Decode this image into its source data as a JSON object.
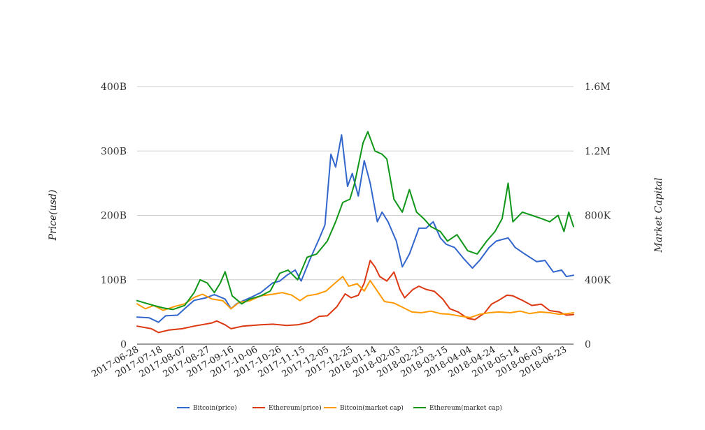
{
  "chart_data": {
    "type": "line",
    "x_start": "2017-06-28",
    "x_end": "2018-06-30",
    "x_tick_labels": [
      "2017-06-28",
      "2017-07-18",
      "2017-08-07",
      "2017-08-27",
      "2017-09-16",
      "2017-10-06",
      "2017-10-26",
      "2017-11-15",
      "2017-12-05",
      "2017-12-25",
      "2018-01-14",
      "2018-02-03",
      "2018-02-23",
      "2018-03-15",
      "2018-04-04",
      "2018-04-24",
      "2018-05-14",
      "2018-06-03",
      "2018-06-23"
    ],
    "ylabel": "Price(usd)",
    "y2label": "Market Capital",
    "ylim": [
      0,
      400
    ],
    "y2lim": [
      0,
      1600
    ],
    "y_tick_labels": [
      "0",
      "100B",
      "200B",
      "300B",
      "400B"
    ],
    "y2_tick_labels": [
      "0",
      "400K",
      "800K",
      "1.2M",
      "1.6M"
    ],
    "grid": true,
    "legend_position": "bottom",
    "series": [
      {
        "name": "Bitcoin(price)",
        "axis": "left",
        "color": "#3366cc",
        "points": [
          [
            "2017-06-28",
            42
          ],
          [
            "2017-07-08",
            41
          ],
          [
            "2017-07-16",
            34
          ],
          [
            "2017-07-22",
            44
          ],
          [
            "2017-08-01",
            45
          ],
          [
            "2017-08-07",
            55
          ],
          [
            "2017-08-15",
            68
          ],
          [
            "2017-08-25",
            72
          ],
          [
            "2017-09-01",
            77
          ],
          [
            "2017-09-10",
            70
          ],
          [
            "2017-09-15",
            55
          ],
          [
            "2017-09-20",
            63
          ],
          [
            "2017-10-01",
            72
          ],
          [
            "2017-10-10",
            80
          ],
          [
            "2017-10-20",
            95
          ],
          [
            "2017-10-26",
            98
          ],
          [
            "2017-11-01",
            107
          ],
          [
            "2017-11-08",
            115
          ],
          [
            "2017-11-13",
            98
          ],
          [
            "2017-11-20",
            130
          ],
          [
            "2017-11-28",
            163
          ],
          [
            "2017-12-03",
            185
          ],
          [
            "2017-12-08",
            295
          ],
          [
            "2017-12-12",
            275
          ],
          [
            "2017-12-17",
            325
          ],
          [
            "2017-12-22",
            245
          ],
          [
            "2017-12-26",
            265
          ],
          [
            "2017-12-31",
            230
          ],
          [
            "2018-01-05",
            285
          ],
          [
            "2018-01-10",
            250
          ],
          [
            "2018-01-16",
            190
          ],
          [
            "2018-01-20",
            205
          ],
          [
            "2018-01-25",
            190
          ],
          [
            "2018-02-01",
            160
          ],
          [
            "2018-02-06",
            120
          ],
          [
            "2018-02-12",
            140
          ],
          [
            "2018-02-20",
            180
          ],
          [
            "2018-02-26",
            180
          ],
          [
            "2018-03-04",
            190
          ],
          [
            "2018-03-10",
            165
          ],
          [
            "2018-03-15",
            155
          ],
          [
            "2018-03-22",
            150
          ],
          [
            "2018-03-30",
            132
          ],
          [
            "2018-04-06",
            118
          ],
          [
            "2018-04-12",
            130
          ],
          [
            "2018-04-20",
            150
          ],
          [
            "2018-04-26",
            160
          ],
          [
            "2018-05-06",
            165
          ],
          [
            "2018-05-12",
            150
          ],
          [
            "2018-05-20",
            140
          ],
          [
            "2018-05-30",
            128
          ],
          [
            "2018-06-06",
            130
          ],
          [
            "2018-06-13",
            112
          ],
          [
            "2018-06-20",
            115
          ],
          [
            "2018-06-24",
            105
          ],
          [
            "2018-06-30",
            107
          ]
        ]
      },
      {
        "name": "Ethereum(price)",
        "axis": "left",
        "color": "#dc3912",
        "points": [
          [
            "2017-06-28",
            28
          ],
          [
            "2017-07-10",
            24
          ],
          [
            "2017-07-16",
            18
          ],
          [
            "2017-07-25",
            22
          ],
          [
            "2017-08-05",
            24
          ],
          [
            "2017-08-15",
            28
          ],
          [
            "2017-08-30",
            33
          ],
          [
            "2017-09-03",
            36
          ],
          [
            "2017-09-10",
            30
          ],
          [
            "2017-09-15",
            24
          ],
          [
            "2017-09-25",
            28
          ],
          [
            "2017-10-10",
            30
          ],
          [
            "2017-10-20",
            31
          ],
          [
            "2017-11-01",
            29
          ],
          [
            "2017-11-10",
            30
          ],
          [
            "2017-11-20",
            34
          ],
          [
            "2017-11-28",
            43
          ],
          [
            "2017-12-05",
            44
          ],
          [
            "2017-12-13",
            58
          ],
          [
            "2017-12-20",
            78
          ],
          [
            "2017-12-25",
            72
          ],
          [
            "2017-12-31",
            76
          ],
          [
            "2018-01-05",
            95
          ],
          [
            "2018-01-10",
            130
          ],
          [
            "2018-01-14",
            120
          ],
          [
            "2018-01-18",
            105
          ],
          [
            "2018-01-24",
            98
          ],
          [
            "2018-01-30",
            112
          ],
          [
            "2018-02-04",
            85
          ],
          [
            "2018-02-08",
            72
          ],
          [
            "2018-02-15",
            85
          ],
          [
            "2018-02-20",
            90
          ],
          [
            "2018-02-26",
            85
          ],
          [
            "2018-03-05",
            82
          ],
          [
            "2018-03-12",
            70
          ],
          [
            "2018-03-18",
            55
          ],
          [
            "2018-03-25",
            50
          ],
          [
            "2018-04-02",
            40
          ],
          [
            "2018-04-08",
            38
          ],
          [
            "2018-04-16",
            48
          ],
          [
            "2018-04-22",
            62
          ],
          [
            "2018-04-28",
            68
          ],
          [
            "2018-05-05",
            76
          ],
          [
            "2018-05-10",
            75
          ],
          [
            "2018-05-18",
            68
          ],
          [
            "2018-05-26",
            60
          ],
          [
            "2018-06-03",
            62
          ],
          [
            "2018-06-10",
            52
          ],
          [
            "2018-06-18",
            50
          ],
          [
            "2018-06-24",
            45
          ],
          [
            "2018-06-30",
            46
          ]
        ]
      },
      {
        "name": "Bitcoin(market cap)",
        "axis": "right",
        "color": "#ff9900",
        "points": [
          [
            "2017-06-28",
            250
          ],
          [
            "2017-07-05",
            220
          ],
          [
            "2017-07-12",
            240
          ],
          [
            "2017-07-20",
            210
          ],
          [
            "2017-07-30",
            235
          ],
          [
            "2017-08-07",
            250
          ],
          [
            "2017-08-15",
            290
          ],
          [
            "2017-08-22",
            310
          ],
          [
            "2017-08-30",
            280
          ],
          [
            "2017-09-08",
            270
          ],
          [
            "2017-09-15",
            220
          ],
          [
            "2017-09-22",
            260
          ],
          [
            "2017-10-01",
            270
          ],
          [
            "2017-10-10",
            300
          ],
          [
            "2017-10-20",
            310
          ],
          [
            "2017-10-28",
            320
          ],
          [
            "2017-11-05",
            305
          ],
          [
            "2017-11-12",
            270
          ],
          [
            "2017-11-18",
            300
          ],
          [
            "2017-11-26",
            310
          ],
          [
            "2017-12-04",
            330
          ],
          [
            "2017-12-10",
            370
          ],
          [
            "2017-12-18",
            420
          ],
          [
            "2017-12-23",
            360
          ],
          [
            "2017-12-30",
            375
          ],
          [
            "2018-01-05",
            330
          ],
          [
            "2018-01-10",
            395
          ],
          [
            "2018-01-16",
            330
          ],
          [
            "2018-01-22",
            265
          ],
          [
            "2018-01-30",
            255
          ],
          [
            "2018-02-06",
            230
          ],
          [
            "2018-02-14",
            200
          ],
          [
            "2018-02-22",
            195
          ],
          [
            "2018-03-02",
            205
          ],
          [
            "2018-03-10",
            190
          ],
          [
            "2018-03-18",
            185
          ],
          [
            "2018-03-26",
            175
          ],
          [
            "2018-04-04",
            165
          ],
          [
            "2018-04-12",
            185
          ],
          [
            "2018-04-20",
            195
          ],
          [
            "2018-04-28",
            200
          ],
          [
            "2018-05-08",
            195
          ],
          [
            "2018-05-16",
            205
          ],
          [
            "2018-05-24",
            190
          ],
          [
            "2018-06-02",
            200
          ],
          [
            "2018-06-10",
            195
          ],
          [
            "2018-06-18",
            185
          ],
          [
            "2018-06-25",
            190
          ],
          [
            "2018-06-30",
            195
          ]
        ]
      },
      {
        "name": "Ethereum(market cap)",
        "axis": "right",
        "color": "#109618",
        "points": [
          [
            "2017-06-28",
            270
          ],
          [
            "2017-07-05",
            255
          ],
          [
            "2017-07-12",
            240
          ],
          [
            "2017-07-20",
            225
          ],
          [
            "2017-07-28",
            215
          ],
          [
            "2017-08-07",
            240
          ],
          [
            "2017-08-15",
            320
          ],
          [
            "2017-08-20",
            400
          ],
          [
            "2017-08-26",
            380
          ],
          [
            "2017-09-01",
            320
          ],
          [
            "2017-09-06",
            380
          ],
          [
            "2017-09-10",
            450
          ],
          [
            "2017-09-16",
            300
          ],
          [
            "2017-09-24",
            250
          ],
          [
            "2017-10-01",
            280
          ],
          [
            "2017-10-10",
            300
          ],
          [
            "2017-10-18",
            330
          ],
          [
            "2017-10-26",
            440
          ],
          [
            "2017-11-02",
            460
          ],
          [
            "2017-11-10",
            400
          ],
          [
            "2017-11-18",
            540
          ],
          [
            "2017-11-26",
            560
          ],
          [
            "2017-12-05",
            640
          ],
          [
            "2017-12-12",
            760
          ],
          [
            "2017-12-18",
            880
          ],
          [
            "2017-12-24",
            900
          ],
          [
            "2017-12-28",
            1000
          ],
          [
            "2018-01-04",
            1250
          ],
          [
            "2018-01-08",
            1320
          ],
          [
            "2018-01-14",
            1200
          ],
          [
            "2018-01-20",
            1180
          ],
          [
            "2018-01-24",
            1150
          ],
          [
            "2018-01-30",
            900
          ],
          [
            "2018-02-06",
            820
          ],
          [
            "2018-02-12",
            960
          ],
          [
            "2018-02-18",
            820
          ],
          [
            "2018-02-24",
            780
          ],
          [
            "2018-03-02",
            730
          ],
          [
            "2018-03-10",
            700
          ],
          [
            "2018-03-16",
            640
          ],
          [
            "2018-03-24",
            680
          ],
          [
            "2018-04-02",
            580
          ],
          [
            "2018-04-10",
            560
          ],
          [
            "2018-04-18",
            640
          ],
          [
            "2018-04-25",
            700
          ],
          [
            "2018-05-01",
            780
          ],
          [
            "2018-05-06",
            1000
          ],
          [
            "2018-05-10",
            760
          ],
          [
            "2018-05-18",
            820
          ],
          [
            "2018-05-26",
            800
          ],
          [
            "2018-06-03",
            780
          ],
          [
            "2018-06-10",
            760
          ],
          [
            "2018-06-17",
            800
          ],
          [
            "2018-06-22",
            700
          ],
          [
            "2018-06-26",
            820
          ],
          [
            "2018-06-30",
            730
          ]
        ]
      }
    ]
  }
}
